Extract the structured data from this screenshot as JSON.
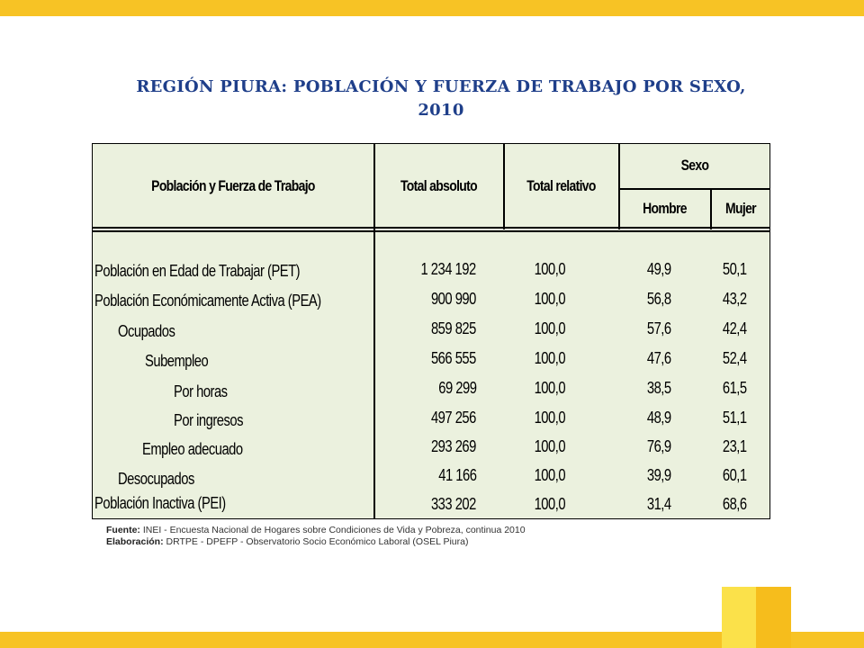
{
  "title_line1": "REGIÓN PIURA: POBLACIÓN Y FUERZA DE TRABAJO POR SEXO,",
  "title_line2": "2010",
  "headers": {
    "concept": "Población y Fuerza de Trabajo",
    "total_abs": "Total absoluto",
    "total_rel": "Total relativo",
    "sexo": "Sexo",
    "hombre": "Hombre",
    "mujer": "Mujer"
  },
  "rows": [
    {
      "label": "Población en Edad de Trabajar (PET)",
      "total_abs": "1 234 192",
      "total_rel": "100,0",
      "hombre": "49,9",
      "mujer": "50,1"
    },
    {
      "label": "Población Económicamente Activa (PEA)",
      "total_abs": "900 990",
      "total_rel": "100,0",
      "hombre": "56,8",
      "mujer": "43,2"
    },
    {
      "label": "Ocupados",
      "total_abs": "859 825",
      "total_rel": "100,0",
      "hombre": "57,6",
      "mujer": "42,4"
    },
    {
      "label": "Subempleo",
      "total_abs": "566 555",
      "total_rel": "100,0",
      "hombre": "47,6",
      "mujer": "52,4"
    },
    {
      "label": "Por horas",
      "total_abs": "69 299",
      "total_rel": "100,0",
      "hombre": "38,5",
      "mujer": "61,5"
    },
    {
      "label": "Por ingresos",
      "total_abs": "497 256",
      "total_rel": "100,0",
      "hombre": "48,9",
      "mujer": "51,1"
    },
    {
      "label": "Empleo adecuado",
      "total_abs": "293 269",
      "total_rel": "100,0",
      "hombre": "76,9",
      "mujer": "23,1"
    },
    {
      "label": "Desocupados",
      "total_abs": "41 166",
      "total_rel": "100,0",
      "hombre": "39,9",
      "mujer": "60,1"
    },
    {
      "label": "Población Inactiva (PEI)",
      "total_abs": "333 202",
      "total_rel": "100,0",
      "hombre": "31,4",
      "mujer": "68,6"
    }
  ],
  "source_label": "Fuente:",
  "source_text": " INEI - Encuesta Nacional de Hogares sobre Condiciones de Vida y Pobreza, continua 2010",
  "elab_label": "Elaboración:",
  "elab_text": " DRTPE - DPEFP - Observatorio Socio Económico Laboral (OSEL Piura)",
  "colors": {
    "accent_yellow": "#f7c325",
    "title_blue": "#1f3f8a",
    "table_bg": "#ebf1de"
  }
}
